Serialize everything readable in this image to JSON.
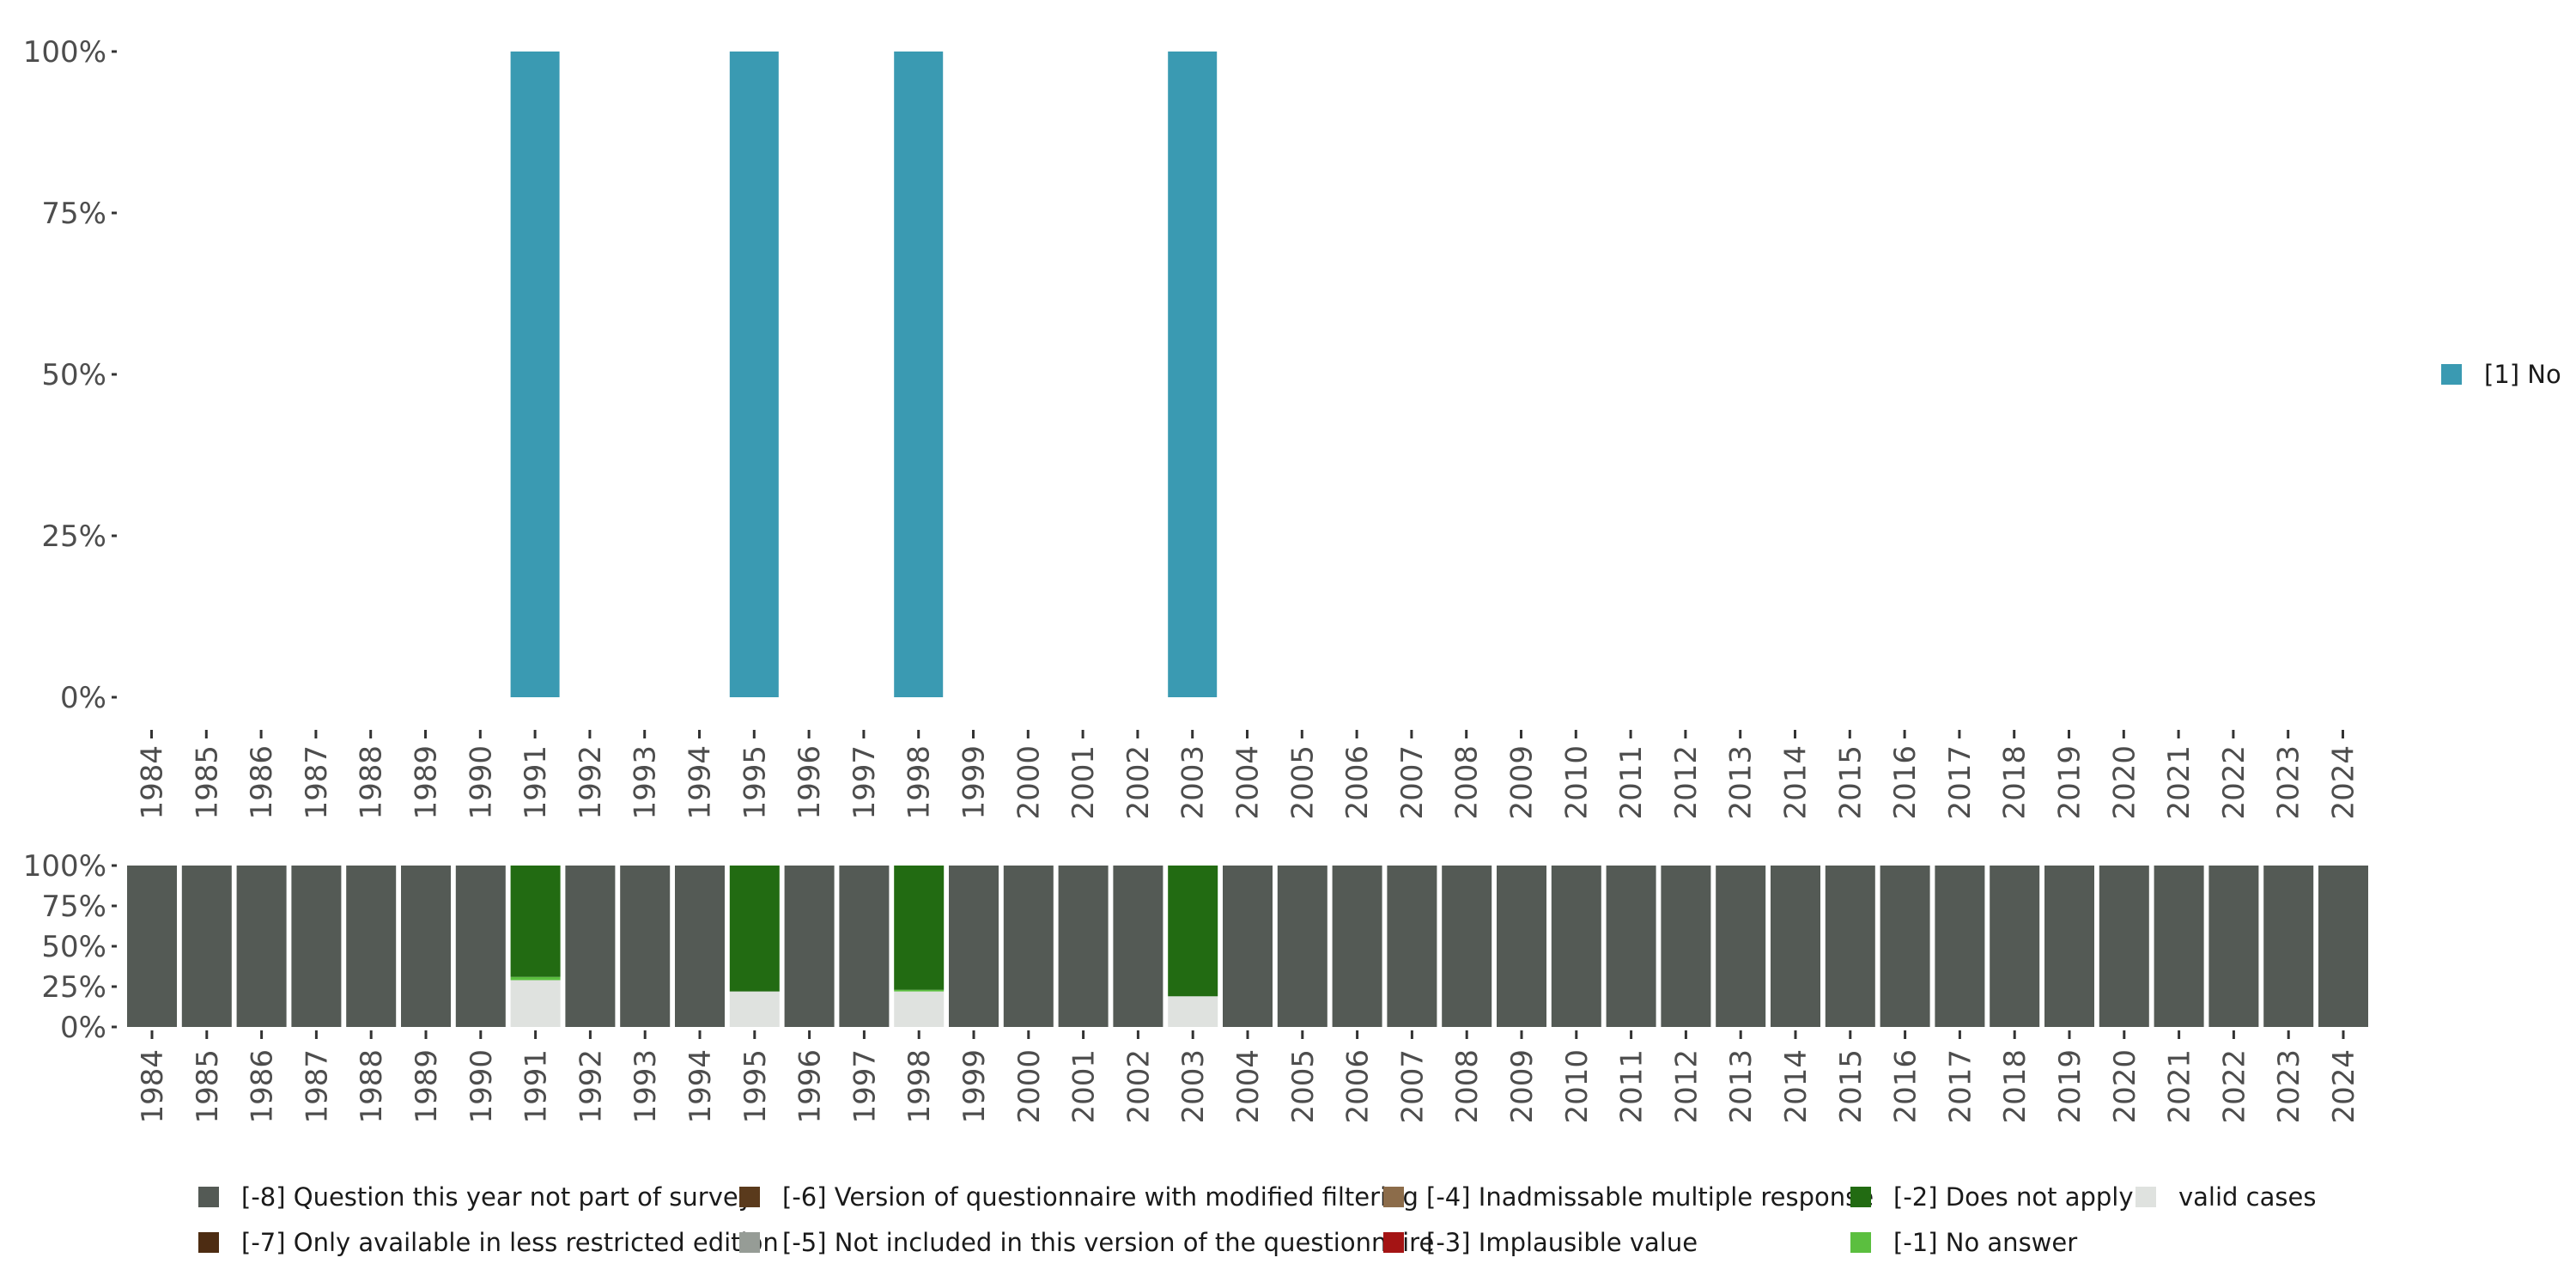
{
  "chart_data": [
    {
      "type": "bar",
      "stacked": true,
      "categories": [
        "1984",
        "1985",
        "1986",
        "1987",
        "1988",
        "1989",
        "1990",
        "1991",
        "1992",
        "1993",
        "1994",
        "1995",
        "1996",
        "1997",
        "1998",
        "1999",
        "2000",
        "2001",
        "2002",
        "2003",
        "2004",
        "2005",
        "2006",
        "2007",
        "2008",
        "2009",
        "2010",
        "2011",
        "2012",
        "2013",
        "2014",
        "2015",
        "2016",
        "2017",
        "2018",
        "2019",
        "2020",
        "2021",
        "2022",
        "2023",
        "2024"
      ],
      "ylim": [
        0,
        1
      ],
      "yticks": [
        0,
        0.25,
        0.5,
        0.75,
        1
      ],
      "ytick_labels": [
        "0%",
        "25%",
        "50%",
        "75%",
        "100%"
      ],
      "series": [
        {
          "name": "[1] No",
          "color": "#3a9ab2",
          "values": [
            0,
            0,
            0,
            0,
            0,
            0,
            0,
            1,
            0,
            0,
            0,
            1,
            0,
            0,
            1,
            0,
            0,
            0,
            0,
            1,
            0,
            0,
            0,
            0,
            0,
            0,
            0,
            0,
            0,
            0,
            0,
            0,
            0,
            0,
            0,
            0,
            0,
            0,
            0,
            0,
            0
          ]
        }
      ],
      "legend": {
        "position": "right",
        "entries": [
          {
            "label": "[1] No",
            "color": "#3a9ab2"
          }
        ]
      }
    },
    {
      "type": "bar",
      "stacked": true,
      "categories": [
        "1984",
        "1985",
        "1986",
        "1987",
        "1988",
        "1989",
        "1990",
        "1991",
        "1992",
        "1993",
        "1994",
        "1995",
        "1996",
        "1997",
        "1998",
        "1999",
        "2000",
        "2001",
        "2002",
        "2003",
        "2004",
        "2005",
        "2006",
        "2007",
        "2008",
        "2009",
        "2010",
        "2011",
        "2012",
        "2013",
        "2014",
        "2015",
        "2016",
        "2017",
        "2018",
        "2019",
        "2020",
        "2021",
        "2022",
        "2023",
        "2024"
      ],
      "ylim": [
        0,
        1
      ],
      "yticks": [
        0,
        0.25,
        0.5,
        0.75,
        1
      ],
      "ytick_labels": [
        "0%",
        "25%",
        "50%",
        "75%",
        "100%"
      ],
      "series": [
        {
          "name": "valid cases",
          "color": "#dfe2df",
          "values": [
            0,
            0,
            0,
            0,
            0,
            0,
            0,
            0.29,
            0,
            0,
            0,
            0.22,
            0,
            0,
            0.22,
            0,
            0,
            0,
            0,
            0.19,
            0,
            0,
            0,
            0,
            0,
            0,
            0,
            0,
            0,
            0,
            0,
            0,
            0,
            0,
            0,
            0,
            0,
            0,
            0,
            0,
            0
          ]
        },
        {
          "name": "[-1] No answer",
          "color": "#5bbf3f",
          "values": [
            0,
            0,
            0,
            0,
            0,
            0,
            0,
            0.02,
            0,
            0,
            0,
            0,
            0,
            0,
            0.01,
            0,
            0,
            0,
            0,
            0,
            0,
            0,
            0,
            0,
            0,
            0,
            0,
            0,
            0,
            0,
            0,
            0,
            0,
            0,
            0,
            0,
            0,
            0,
            0,
            0,
            0
          ]
        },
        {
          "name": "[-2] Does not apply",
          "color": "#226b12",
          "values": [
            0,
            0,
            0,
            0,
            0,
            0,
            0,
            0.69,
            0,
            0,
            0,
            0.78,
            0,
            0,
            0.77,
            0,
            0,
            0,
            0,
            0.81,
            0,
            0,
            0,
            0,
            0,
            0,
            0,
            0,
            0,
            0,
            0,
            0,
            0,
            0,
            0,
            0,
            0,
            0,
            0,
            0,
            0
          ]
        },
        {
          "name": "[-8] Question this year not part of survey",
          "color": "#545a55",
          "values": [
            1,
            1,
            1,
            1,
            1,
            1,
            1,
            0,
            1,
            1,
            1,
            0,
            1,
            1,
            0,
            1,
            1,
            1,
            1,
            0,
            1,
            1,
            1,
            1,
            1,
            1,
            1,
            1,
            1,
            1,
            1,
            1,
            1,
            1,
            1,
            1,
            1,
            1,
            1,
            1,
            1
          ]
        }
      ],
      "legend": {
        "position": "bottom",
        "entries": [
          {
            "label": "[-8] Question this year not part of survey",
            "color": "#545a55"
          },
          {
            "label": "[-7] Only available in less restricted edition",
            "color": "#4d2c12"
          },
          {
            "label": "[-6] Version of questionnaire with modified filtering",
            "color": "#5a3a1c"
          },
          {
            "label": "[-5] Not included in this version of the questionnaire",
            "color": "#969c96"
          },
          {
            "label": "[-4] Inadmissable multiple response",
            "color": "#8c6c4a"
          },
          {
            "label": "[-3] Implausible value",
            "color": "#a41414"
          },
          {
            "label": "[-2] Does not apply",
            "color": "#226b12"
          },
          {
            "label": "[-1] No answer",
            "color": "#5bbf3f"
          },
          {
            "label": "valid cases",
            "color": "#dfe2df"
          }
        ]
      }
    }
  ]
}
